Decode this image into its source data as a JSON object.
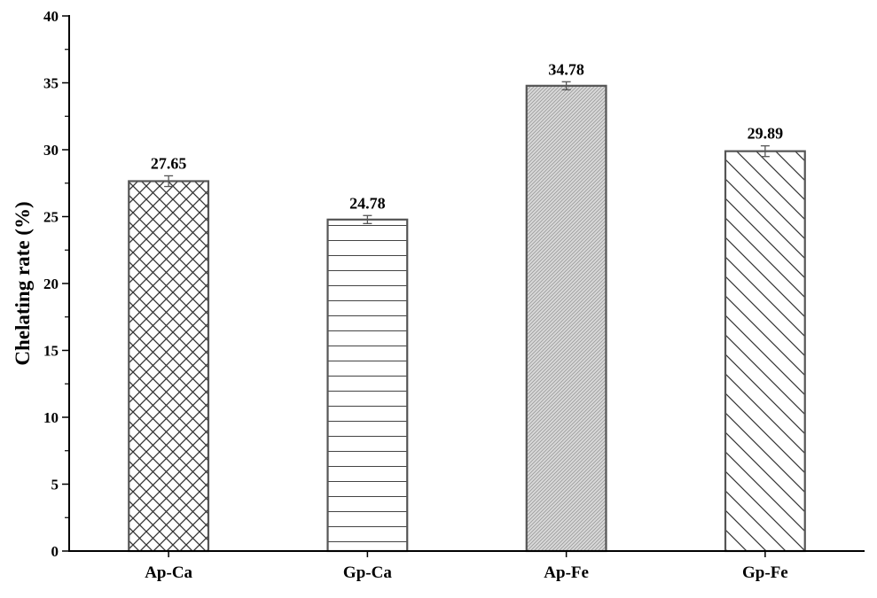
{
  "chart_data": {
    "type": "bar",
    "title": "",
    "xlabel": "",
    "ylabel": "Chelating rate (%)",
    "ylim": [
      0,
      40
    ],
    "yticks": [
      0,
      5,
      10,
      15,
      20,
      25,
      30,
      35,
      40
    ],
    "yticks_text": [
      "0",
      "5",
      "10",
      "15",
      "20",
      "25",
      "30",
      "35",
      "40"
    ],
    "grid": false,
    "categories": [
      "Ap-Ca",
      "Gp-Ca",
      "Ap-Fe",
      "Gp-Fe"
    ],
    "values": [
      27.65,
      24.78,
      34.78,
      29.89
    ],
    "value_labels": [
      "27.65",
      "24.78",
      "34.78",
      "29.89"
    ],
    "errors": [
      0.4,
      0.3,
      0.3,
      0.4
    ],
    "patterns": [
      "crosshatch",
      "horizontal-lines",
      "dense-diagonal",
      "diagonal-lines"
    ],
    "bar_stroke_color": "#555555",
    "axis_color": "#000000"
  }
}
